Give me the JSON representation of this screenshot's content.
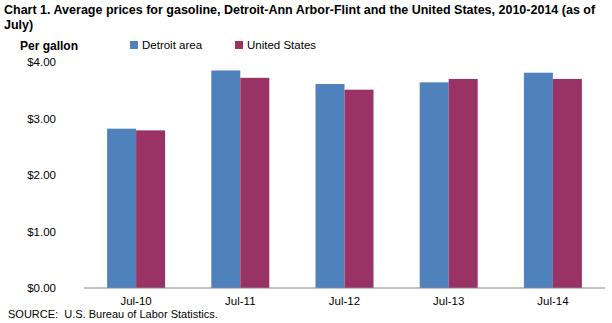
{
  "chart_data": {
    "type": "bar",
    "title": "Chart 1. Average prices for gasoline, Detroit-Ann Arbor-Flint and the United States, 2010-2014 (as of July)",
    "y_label": "Per gallon",
    "source": "SOURCE:  U.S. Bureau of Labor Statistics.",
    "categories": [
      "Jul-10",
      "Jul-11",
      "Jul-12",
      "Jul-13",
      "Jul-14"
    ],
    "series": [
      {
        "name": "Detroit area",
        "color": "#4f81bd",
        "values": [
          2.82,
          3.85,
          3.61,
          3.64,
          3.81
        ]
      },
      {
        "name": "United States",
        "color": "#993366",
        "values": [
          2.79,
          3.72,
          3.51,
          3.7,
          3.7
        ]
      }
    ],
    "ylim": [
      0,
      4
    ],
    "yticks": [
      {
        "value": 0,
        "label": "$0.00"
      },
      {
        "value": 1,
        "label": "$1.00"
      },
      {
        "value": 2,
        "label": "$2.00"
      },
      {
        "value": 3,
        "label": "$3.00"
      },
      {
        "value": 4,
        "label": "$4.00"
      }
    ],
    "grid": false,
    "legend": "top"
  }
}
